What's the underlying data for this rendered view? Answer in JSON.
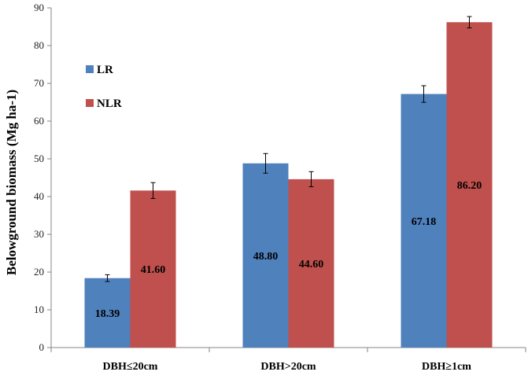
{
  "chart_data": {
    "type": "bar",
    "title": "",
    "xlabel": "",
    "ylabel": "Belowground biomass (Mg ha-1)",
    "ylim": [
      0,
      90
    ],
    "yticks": [
      0,
      10,
      20,
      30,
      40,
      50,
      60,
      70,
      80,
      90
    ],
    "grid": false,
    "legend_position": "left",
    "categories": [
      "DBH≤20cm",
      "DBH>20cm",
      "DBH≥1cm"
    ],
    "series": [
      {
        "name": "LR",
        "color": "#4f81bd",
        "values": [
          18.39,
          48.8,
          67.18
        ],
        "labels": [
          "18.39",
          "48.80",
          "67.18"
        ],
        "errors": [
          0.9,
          2.6,
          2.2
        ]
      },
      {
        "name": "NLR",
        "color": "#c0504d",
        "values": [
          41.6,
          44.6,
          86.2
        ],
        "labels": [
          "41.60",
          "44.60",
          "86.20"
        ],
        "errors": [
          2.1,
          2.0,
          1.5
        ]
      }
    ]
  }
}
